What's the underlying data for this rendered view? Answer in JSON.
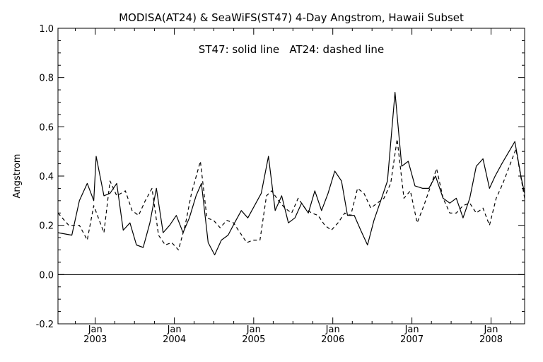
{
  "chart_data": {
    "type": "line",
    "title": "MODISA(AT24) & SeaWiFS(ST47) 4-Day Angstrom, Hawaii Subset",
    "annotation": "ST47: solid line   AT24: dashed line",
    "xlabel": "",
    "ylabel": "Angstrom",
    "ylim": [
      -0.2,
      1.0
    ],
    "xlim": [
      "2002-07-13",
      "2008-06-04"
    ],
    "y_ticks": [
      "-0.2",
      "0.0",
      "0.2",
      "0.4",
      "0.6",
      "0.8",
      "1.0"
    ],
    "x_ticks": [
      {
        "date": "2003-01-01",
        "month": "Jan",
        "year": "2003"
      },
      {
        "date": "2004-01-01",
        "month": "Jan",
        "year": "2004"
      },
      {
        "date": "2005-01-01",
        "month": "Jan",
        "year": "2005"
      },
      {
        "date": "2006-01-01",
        "month": "Jan",
        "year": "2006"
      },
      {
        "date": "2007-01-01",
        "month": "Jan",
        "year": "2007"
      },
      {
        "date": "2008-01-01",
        "month": "Jan",
        "year": "2008"
      }
    ],
    "reference_line": 0.0,
    "grid": false,
    "series": [
      {
        "name": "ST47",
        "style": "solid",
        "x": [
          "2002-07-13",
          "2002-09-15",
          "2002-10-20",
          "2002-11-25",
          "2002-12-25",
          "2003-01-05",
          "2003-02-10",
          "2003-03-10",
          "2003-04-10",
          "2003-05-10",
          "2003-06-10",
          "2003-07-10",
          "2003-08-10",
          "2003-09-10",
          "2003-10-10",
          "2003-11-10",
          "2003-12-10",
          "2004-01-10",
          "2004-02-10",
          "2004-03-10",
          "2004-04-10",
          "2004-05-05",
          "2004-06-05",
          "2004-07-05",
          "2004-08-05",
          "2004-09-05",
          "2004-10-05",
          "2004-11-05",
          "2004-12-05",
          "2005-01-05",
          "2005-02-05",
          "2005-03-10",
          "2005-04-10",
          "2005-05-10",
          "2005-06-10",
          "2005-07-10",
          "2005-08-10",
          "2005-09-10",
          "2005-10-10",
          "2005-11-10",
          "2005-12-10",
          "2006-01-10",
          "2006-02-10",
          "2006-03-10",
          "2006-04-10",
          "2006-05-10",
          "2006-06-10",
          "2006-07-10",
          "2006-08-10",
          "2006-09-10",
          "2006-10-15",
          "2006-11-15",
          "2006-12-15",
          "2007-01-15",
          "2007-02-20",
          "2007-03-20",
          "2007-04-20",
          "2007-05-25",
          "2007-06-25",
          "2007-07-25",
          "2007-08-25",
          "2007-09-25",
          "2007-10-25",
          "2007-11-25",
          "2007-12-25",
          "2008-01-20",
          "2008-02-20",
          "2008-04-20",
          "2008-05-20",
          "2008-06-04"
        ],
        "values": [
          0.17,
          0.16,
          0.3,
          0.37,
          0.3,
          0.48,
          0.32,
          0.33,
          0.37,
          0.18,
          0.21,
          0.12,
          0.11,
          0.21,
          0.35,
          0.17,
          0.2,
          0.24,
          0.17,
          0.23,
          0.32,
          0.37,
          0.13,
          0.08,
          0.14,
          0.16,
          0.21,
          0.26,
          0.23,
          0.28,
          0.33,
          0.48,
          0.26,
          0.32,
          0.21,
          0.23,
          0.29,
          0.25,
          0.34,
          0.26,
          0.33,
          0.42,
          0.38,
          0.24,
          0.24,
          0.18,
          0.12,
          0.22,
          0.3,
          0.38,
          0.74,
          0.44,
          0.46,
          0.36,
          0.35,
          0.35,
          0.4,
          0.31,
          0.29,
          0.31,
          0.23,
          0.31,
          0.44,
          0.47,
          0.35,
          0.4,
          0.45,
          0.54,
          0.39,
          0.33
        ]
      },
      {
        "name": "AT24",
        "style": "dashed",
        "x": [
          "2002-07-13",
          "2002-09-01",
          "2002-10-20",
          "2002-11-25",
          "2002-12-25",
          "2003-02-10",
          "2003-03-10",
          "2003-04-10",
          "2003-05-20",
          "2003-06-20",
          "2003-07-20",
          "2003-08-20",
          "2003-09-20",
          "2003-10-20",
          "2003-11-20",
          "2003-12-20",
          "2004-01-20",
          "2004-02-20",
          "2004-03-20",
          "2004-04-30",
          "2004-05-30",
          "2004-06-30",
          "2004-07-30",
          "2004-08-30",
          "2004-09-30",
          "2004-10-30",
          "2004-11-30",
          "2004-12-30",
          "2005-01-30",
          "2005-03-01",
          "2005-03-25",
          "2005-04-25",
          "2005-05-25",
          "2005-06-25",
          "2005-07-25",
          "2005-08-25",
          "2005-09-25",
          "2005-10-25",
          "2005-11-25",
          "2005-12-25",
          "2006-01-25",
          "2006-02-25",
          "2006-03-25",
          "2006-04-25",
          "2006-05-25",
          "2006-06-25",
          "2006-07-25",
          "2006-08-25",
          "2006-09-25",
          "2006-10-25",
          "2006-11-25",
          "2006-12-25",
          "2007-01-25",
          "2007-02-25",
          "2007-03-25",
          "2007-04-25",
          "2007-05-25",
          "2007-06-25",
          "2007-07-25",
          "2007-08-25",
          "2007-09-25",
          "2007-10-25",
          "2007-11-25",
          "2007-12-25",
          "2008-01-25",
          "2008-02-25",
          "2008-04-25",
          "2008-06-04"
        ],
        "values": [
          0.25,
          0.2,
          0.2,
          0.14,
          0.28,
          0.17,
          0.38,
          0.32,
          0.34,
          0.26,
          0.24,
          0.3,
          0.35,
          0.16,
          0.12,
          0.13,
          0.1,
          0.2,
          0.33,
          0.46,
          0.23,
          0.22,
          0.19,
          0.22,
          0.21,
          0.17,
          0.13,
          0.14,
          0.14,
          0.32,
          0.34,
          0.3,
          0.27,
          0.25,
          0.31,
          0.27,
          0.25,
          0.24,
          0.2,
          0.18,
          0.21,
          0.25,
          0.24,
          0.35,
          0.33,
          0.27,
          0.29,
          0.31,
          0.37,
          0.55,
          0.31,
          0.34,
          0.21,
          0.28,
          0.35,
          0.43,
          0.31,
          0.25,
          0.25,
          0.28,
          0.29,
          0.25,
          0.27,
          0.2,
          0.31,
          0.37,
          0.51,
          0.31
        ]
      }
    ]
  }
}
